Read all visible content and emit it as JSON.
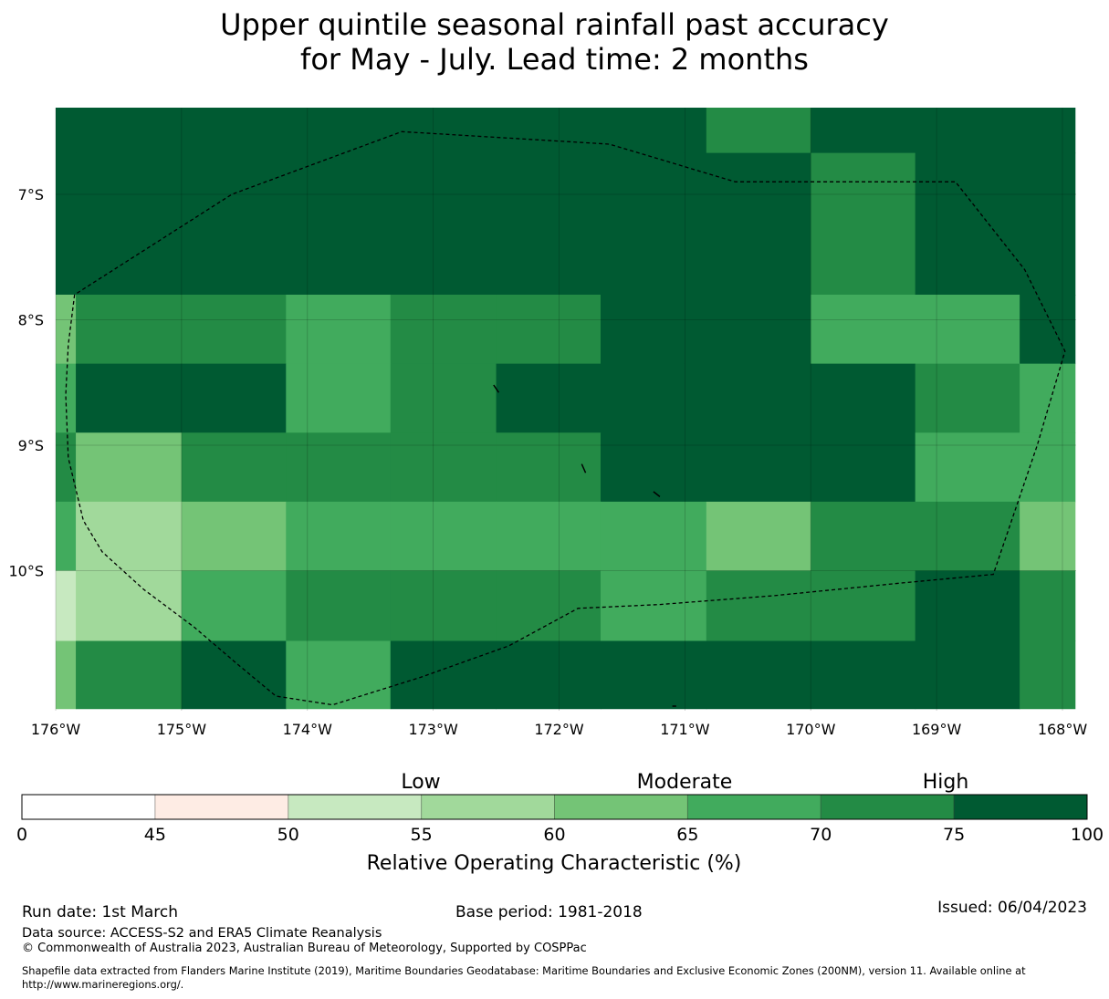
{
  "title": {
    "line1": "Upper quintile seasonal rainfall past accuracy",
    "line2": "for May - July. Lead time: 2 months"
  },
  "map": {
    "lon_range": [
      -176,
      -168
    ],
    "lat_range": [
      -11.15,
      -6.3
    ],
    "lat_ticks": [
      {
        "value": -7,
        "label": "7°S"
      },
      {
        "value": -8,
        "label": "8°S"
      },
      {
        "value": -9,
        "label": "9°S"
      },
      {
        "value": -10,
        "label": "10°S"
      }
    ],
    "lon_ticks": [
      {
        "value": -176,
        "label": "176°W"
      },
      {
        "value": -175,
        "label": "175°W"
      },
      {
        "value": -174,
        "label": "174°W"
      },
      {
        "value": -173,
        "label": "173°W"
      },
      {
        "value": -172,
        "label": "172°W"
      },
      {
        "value": -171,
        "label": "171°W"
      },
      {
        "value": -170,
        "label": "170°W"
      },
      {
        "value": -169,
        "label": "169°W"
      },
      {
        "value": -168,
        "label": "168°W"
      }
    ],
    "grid_lon_edges": [
      -176,
      -175.84,
      -175,
      -174.17,
      -173.34,
      -172.5,
      -171.67,
      -170.83,
      -170,
      -169.17,
      -168.34,
      -167.9
    ],
    "grid_lat_edges": [
      -6.3,
      -6.67,
      -7.8,
      -8.35,
      -8.9,
      -9.45,
      -10.0,
      -10.56,
      -11.1
    ],
    "grid_roc_class": [
      [
        7,
        7,
        7,
        7,
        7,
        7,
        7,
        6,
        7,
        7,
        7
      ],
      [
        7,
        7,
        7,
        7,
        7,
        7,
        7,
        7,
        6,
        7,
        7
      ],
      [
        4,
        6,
        6,
        5,
        6,
        6,
        7,
        7,
        5,
        5,
        7
      ],
      [
        5,
        7,
        7,
        5,
        6,
        7,
        7,
        7,
        7,
        6,
        5
      ],
      [
        6,
        4,
        6,
        6,
        6,
        6,
        7,
        7,
        7,
        5,
        5
      ],
      [
        5,
        3,
        4,
        5,
        5,
        5,
        5,
        4,
        6,
        6,
        4
      ],
      [
        2,
        3,
        5,
        6,
        6,
        6,
        5,
        6,
        6,
        7,
        6
      ],
      [
        4,
        6,
        7,
        5,
        7,
        7,
        7,
        7,
        7,
        7,
        6
      ]
    ],
    "eez_boundary": [
      [
        -175.85,
        -7.8
      ],
      [
        -175.9,
        -8.2
      ],
      [
        -175.92,
        -8.6
      ],
      [
        -175.9,
        -9.1
      ],
      [
        -175.78,
        -9.6
      ],
      [
        -175.63,
        -9.85
      ],
      [
        -175.3,
        -10.15
      ],
      [
        -174.9,
        -10.45
      ],
      [
        -174.55,
        -10.75
      ],
      [
        -174.25,
        -11.0
      ],
      [
        -173.8,
        -11.07
      ],
      [
        -173.1,
        -10.85
      ],
      [
        -172.4,
        -10.6
      ],
      [
        -171.85,
        -10.3
      ],
      [
        -171.2,
        -10.27
      ],
      [
        -170.3,
        -10.2
      ],
      [
        -169.3,
        -10.1
      ],
      [
        -168.55,
        -10.03
      ],
      [
        -168.2,
        -9.0
      ],
      [
        -167.98,
        -8.25
      ],
      [
        -168.3,
        -7.6
      ],
      [
        -168.85,
        -6.9
      ],
      [
        -169.5,
        -6.9
      ],
      [
        -170.6,
        -6.9
      ],
      [
        -171.6,
        -6.6
      ],
      [
        -173.25,
        -6.5
      ],
      [
        -174.6,
        -7.0
      ],
      [
        -175.85,
        -7.8
      ]
    ],
    "islands": [
      [
        [
          -172.52,
          -8.52
        ],
        [
          -172.49,
          -8.58
        ]
      ],
      [
        [
          -171.82,
          -9.15
        ],
        [
          -171.8,
          -9.22
        ]
      ],
      [
        [
          -171.25,
          -9.37
        ],
        [
          -171.21,
          -9.41
        ]
      ],
      [
        [
          -171.1,
          -11.08
        ],
        [
          -171.08,
          -11.08
        ]
      ]
    ]
  },
  "colorbar": {
    "boundaries": [
      0,
      45,
      50,
      55,
      60,
      65,
      70,
      75,
      100
    ],
    "tick_labels": [
      "0",
      "45",
      "50",
      "55",
      "60",
      "65",
      "70",
      "75",
      "100"
    ],
    "colors": [
      "#ffffff",
      "#feece4",
      "#c7e9c0",
      "#a1d99b",
      "#74c476",
      "#41ab5d",
      "#238b45",
      "#005a32"
    ],
    "categories": {
      "low": "Low",
      "moderate": "Moderate",
      "high": "High"
    },
    "title": "Relative Operating Characteristic (%)"
  },
  "footer": {
    "run_date": "Run date: 1st March",
    "base_period": "Base period: 1981-2018",
    "issued": "Issued: 06/04/2023",
    "data_source": "Data source: ACCESS-S2 and ERA5 Climate Reanalysis",
    "copyright": "© Commonwealth of Australia 2023, Australian Bureau of Meteorology, Supported by COSPPac",
    "shapefile_line1": "Shapefile data extracted from Flanders Marine Institute (2019), Maritime Boundaries Geodatabase: Maritime Boundaries and Exclusive Economic Zones (200NM), version 11. Available online at",
    "shapefile_line2": "http://www.marineregions.org/."
  }
}
